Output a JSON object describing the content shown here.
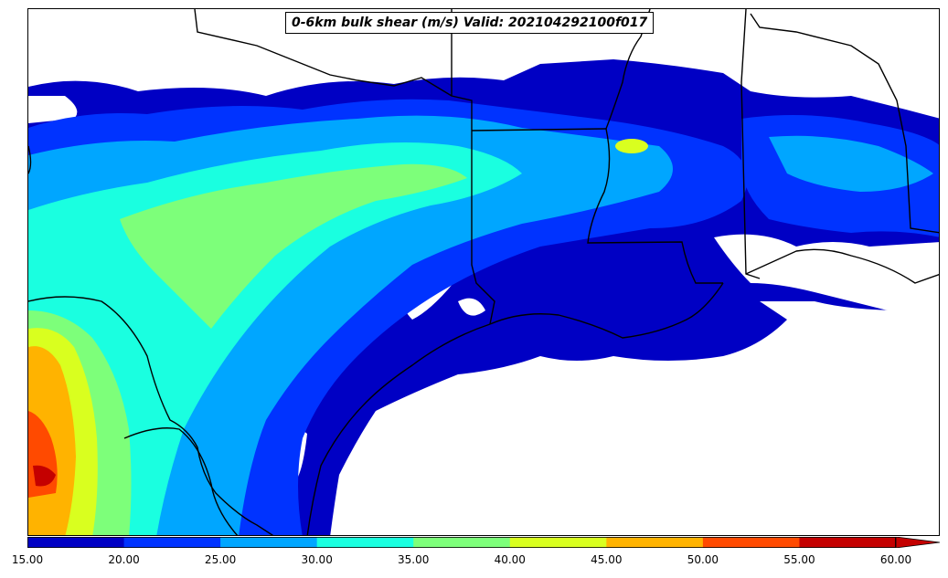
{
  "title": "0-6km bulk shear (m/s) Valid: 202104292100f017",
  "colorbar": {
    "ticks": [
      "15.00",
      "20.00",
      "25.00",
      "30.00",
      "35.00",
      "40.00",
      "45.00",
      "50.00",
      "55.00",
      "60.00"
    ],
    "colors": [
      "#0000c4",
      "#0033ff",
      "#00a6ff",
      "#1affe0",
      "#7dff7a",
      "#d9ff1f",
      "#ffb300",
      "#ff4a00",
      "#c40000"
    ],
    "extend": "max"
  },
  "map": {
    "variable": "0-6km bulk shear",
    "units": "m/s",
    "valid": "202104292100f017"
  }
}
